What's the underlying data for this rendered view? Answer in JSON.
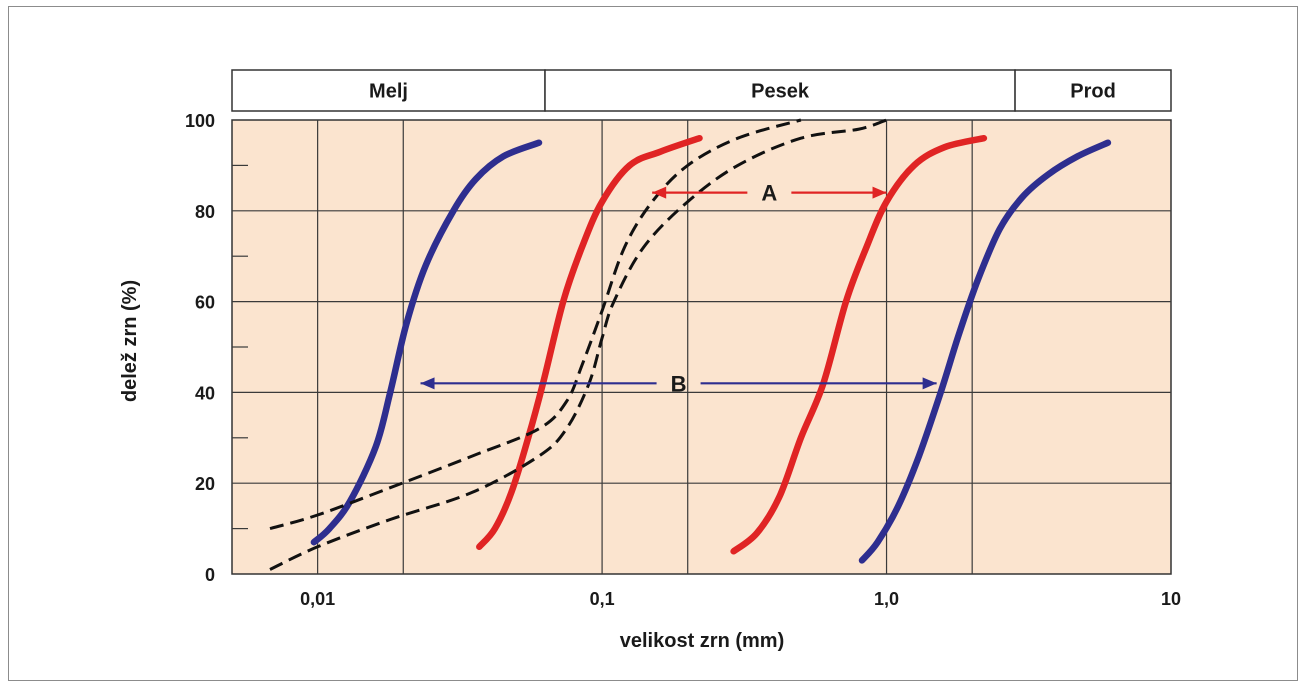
{
  "chart_data": {
    "type": "line",
    "xscale": "log",
    "xlim": [
      0.005,
      10
    ],
    "ylim": [
      0,
      100
    ],
    "grid": true,
    "background_color": "#fbe4cf",
    "xlabel": "velikost zrn (mm)",
    "ylabel": "delež zrn (%)",
    "x_ticks": [
      {
        "value": 0.01,
        "label": "0,01"
      },
      {
        "value": 0.1,
        "label": "0,1"
      },
      {
        "value": 1.0,
        "label": "1,0"
      },
      {
        "value": 10,
        "label": "10"
      }
    ],
    "x_gridlines": [
      0.02,
      0.2,
      2.0
    ],
    "y_ticks": [
      0,
      20,
      40,
      60,
      80,
      100
    ],
    "y_minor_ticks": [
      10,
      30,
      50,
      70,
      90
    ],
    "size_classes": [
      {
        "label": "Melj",
        "from": 0.005,
        "to": 0.063
      },
      {
        "label": "Pesek",
        "from": 0.063,
        "to": 2.83
      },
      {
        "label": "Prod",
        "from": 2.83,
        "to": 10
      }
    ],
    "series": [
      {
        "color": "#2e2e8f",
        "style": "solid",
        "points": [
          [
            0.0097,
            7
          ],
          [
            0.011,
            10
          ],
          [
            0.013,
            16
          ],
          [
            0.016,
            28
          ],
          [
            0.018,
            40
          ],
          [
            0.0205,
            55
          ],
          [
            0.024,
            68
          ],
          [
            0.03,
            80
          ],
          [
            0.036,
            87
          ],
          [
            0.045,
            92
          ],
          [
            0.06,
            95
          ]
        ]
      },
      {
        "color": "#e02424",
        "style": "solid",
        "points": [
          [
            0.037,
            6
          ],
          [
            0.042,
            10
          ],
          [
            0.048,
            18
          ],
          [
            0.055,
            30
          ],
          [
            0.062,
            42
          ],
          [
            0.073,
            60
          ],
          [
            0.085,
            72
          ],
          [
            0.1,
            82
          ],
          [
            0.125,
            90
          ],
          [
            0.16,
            93
          ],
          [
            0.22,
            96
          ]
        ]
      },
      {
        "color": "#e02424",
        "style": "solid",
        "points": [
          [
            0.29,
            5
          ],
          [
            0.35,
            9
          ],
          [
            0.42,
            17
          ],
          [
            0.5,
            30
          ],
          [
            0.6,
            42
          ],
          [
            0.72,
            60
          ],
          [
            0.85,
            72
          ],
          [
            1.0,
            82
          ],
          [
            1.25,
            90
          ],
          [
            1.6,
            94
          ],
          [
            2.2,
            96
          ]
        ]
      },
      {
        "color": "#2e2e8f",
        "style": "solid",
        "points": [
          [
            0.82,
            3
          ],
          [
            0.93,
            7
          ],
          [
            1.1,
            15
          ],
          [
            1.3,
            26
          ],
          [
            1.55,
            40
          ],
          [
            1.8,
            53
          ],
          [
            2.1,
            65
          ],
          [
            2.5,
            76
          ],
          [
            3.0,
            83
          ],
          [
            3.7,
            88
          ],
          [
            4.7,
            92
          ],
          [
            6.0,
            95
          ]
        ]
      },
      {
        "color": "#111111",
        "style": "dashed",
        "points": [
          [
            0.0068,
            10
          ],
          [
            0.01,
            13
          ],
          [
            0.018,
            19
          ],
          [
            0.035,
            26
          ],
          [
            0.06,
            32
          ],
          [
            0.075,
            38
          ],
          [
            0.085,
            46
          ],
          [
            0.1,
            58
          ],
          [
            0.12,
            72
          ],
          [
            0.15,
            82
          ],
          [
            0.2,
            90
          ],
          [
            0.3,
            96
          ],
          [
            0.5,
            100
          ]
        ]
      },
      {
        "color": "#111111",
        "style": "dashed",
        "points": [
          [
            0.0068,
            1
          ],
          [
            0.01,
            6
          ],
          [
            0.018,
            12
          ],
          [
            0.035,
            18
          ],
          [
            0.06,
            26
          ],
          [
            0.075,
            32
          ],
          [
            0.09,
            42
          ],
          [
            0.1,
            52
          ],
          [
            0.11,
            60
          ],
          [
            0.14,
            72
          ],
          [
            0.2,
            82
          ],
          [
            0.3,
            90
          ],
          [
            0.5,
            96
          ],
          [
            0.8,
            98
          ],
          [
            1.0,
            100
          ]
        ]
      }
    ],
    "annotations": [
      {
        "label": "A",
        "color": "#e02424",
        "y": 84,
        "x_from": 0.15,
        "x_to": 1.0
      },
      {
        "label": "B",
        "color": "#2e2e8f",
        "y": 42,
        "x_from": 0.023,
        "x_to": 1.5
      }
    ]
  }
}
